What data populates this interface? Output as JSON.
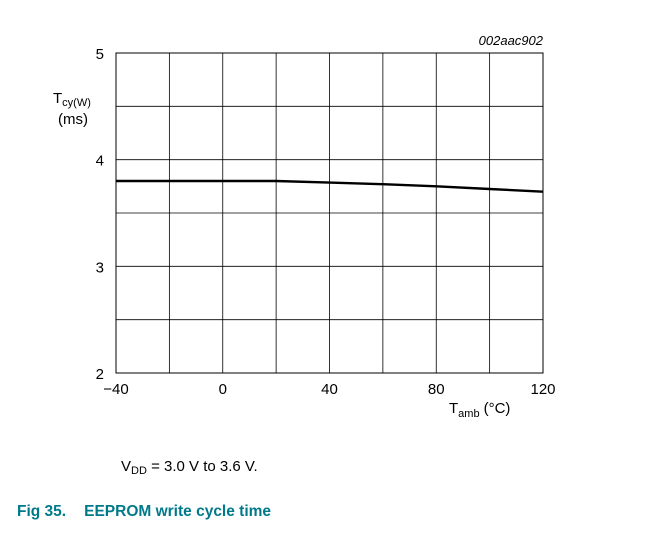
{
  "chart_data": {
    "type": "line",
    "id_label": "002aac902",
    "y_axis": {
      "symbol": "T",
      "subscript": "cy(W)",
      "unit": "(ms)",
      "ylim": [
        2,
        5
      ],
      "ticks": [
        "5",
        "4",
        "3",
        "2"
      ]
    },
    "x_axis": {
      "symbol": "T",
      "subscript": "amb",
      "unit": "(°C)",
      "xlim": [
        -40,
        120
      ],
      "ticks": [
        "−40",
        "0",
        "40",
        "80",
        "120"
      ]
    },
    "grid": true,
    "series": [
      {
        "x": [
          -40,
          -20,
          0,
          20,
          40,
          60,
          80,
          100,
          120
        ],
        "y": [
          3.8,
          3.8,
          3.8,
          3.8,
          3.785,
          3.77,
          3.75,
          3.725,
          3.7
        ]
      }
    ]
  },
  "note": {
    "prefix": "V",
    "subscript": "DD",
    "text": " = 3.0 V to 3.6 V."
  },
  "caption": {
    "fig_number": "Fig 35.",
    "title": "EEPROM write cycle time"
  }
}
